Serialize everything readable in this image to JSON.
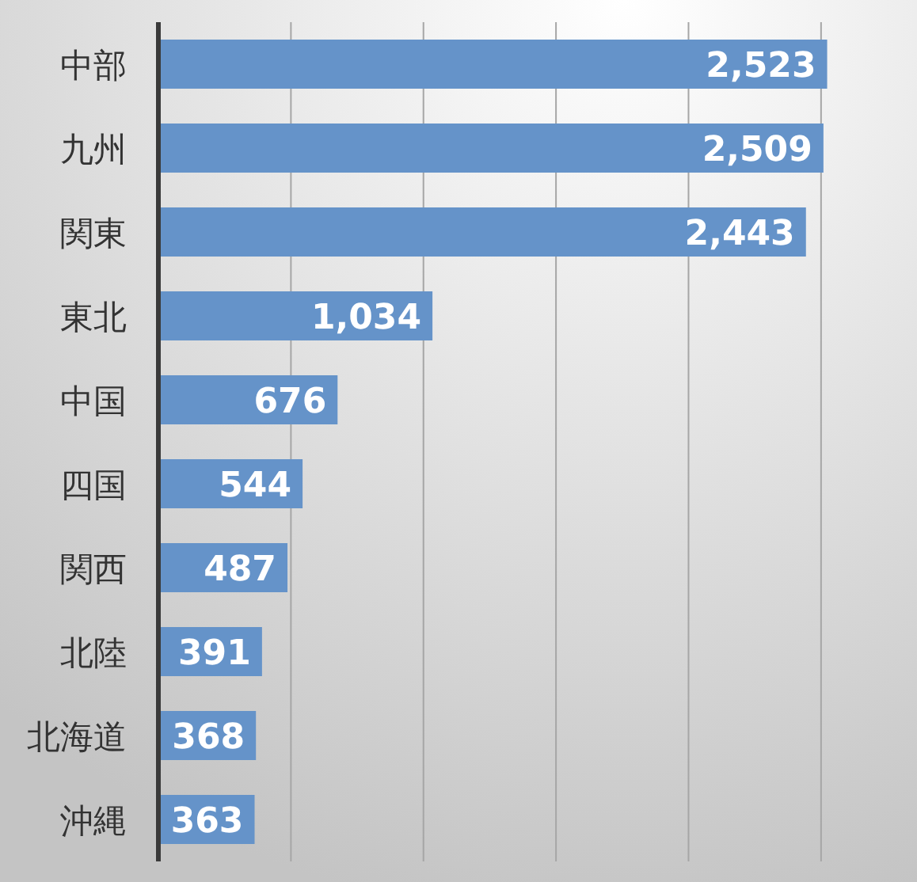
{
  "chart_data": {
    "type": "bar",
    "orientation": "horizontal",
    "categories": [
      "中部",
      "九州",
      "関東",
      "東北",
      "中国",
      "四国",
      "関西",
      "北陸",
      "北海道",
      "沖縄"
    ],
    "values": [
      2523,
      2509,
      2443,
      1034,
      676,
      544,
      487,
      391,
      368,
      363
    ],
    "value_labels": [
      "2,523",
      "2,509",
      "2,443",
      "1,034",
      "676",
      "544",
      "487",
      "391",
      "368",
      "363"
    ],
    "color": "#6593c9",
    "xlim": [
      0,
      2850
    ],
    "xticks": [
      {
        "value": 0,
        "label": null
      },
      {
        "value": 500,
        "label": null
      },
      {
        "value": 1000,
        "label": null
      },
      {
        "value": 1500,
        "label": null
      },
      {
        "value": 2000,
        "label": null
      },
      {
        "value": 2500,
        "label": null
      }
    ],
    "tick_labels": "y",
    "grid": "x"
  }
}
